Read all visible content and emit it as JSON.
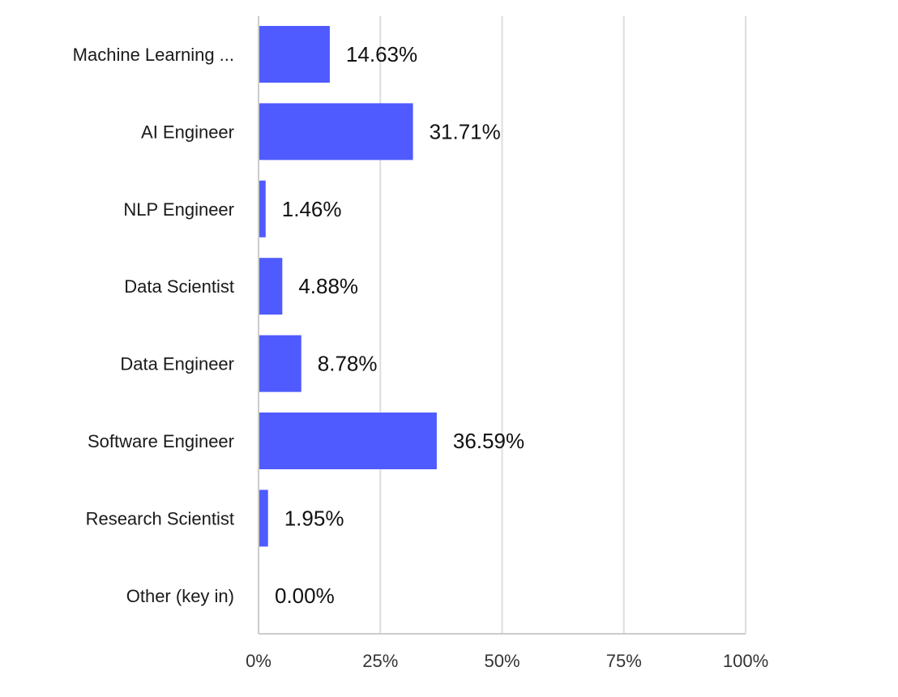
{
  "chart_data": {
    "type": "bar",
    "orientation": "horizontal",
    "categories": [
      "Machine Learning ...",
      "AI Engineer",
      "NLP Engineer",
      "Data Scientist",
      "Data Engineer",
      "Software Engineer",
      "Research Scientist",
      "Other (key in)"
    ],
    "values": [
      14.63,
      31.71,
      1.46,
      4.88,
      8.78,
      36.59,
      1.95,
      0.0
    ],
    "value_labels": [
      "14.63%",
      "31.71%",
      "1.46%",
      "4.88%",
      "8.78%",
      "36.59%",
      "1.95%",
      "0.00%"
    ],
    "xlim": [
      0,
      100
    ],
    "x_ticks": [
      0,
      25,
      50,
      75,
      100
    ],
    "x_tick_labels": [
      "0%",
      "25%",
      "50%",
      "75%",
      "100%"
    ],
    "grid": "vertical",
    "legend": "none",
    "bar_color": "#4f5bff",
    "title": "",
    "xlabel": "",
    "ylabel": ""
  }
}
